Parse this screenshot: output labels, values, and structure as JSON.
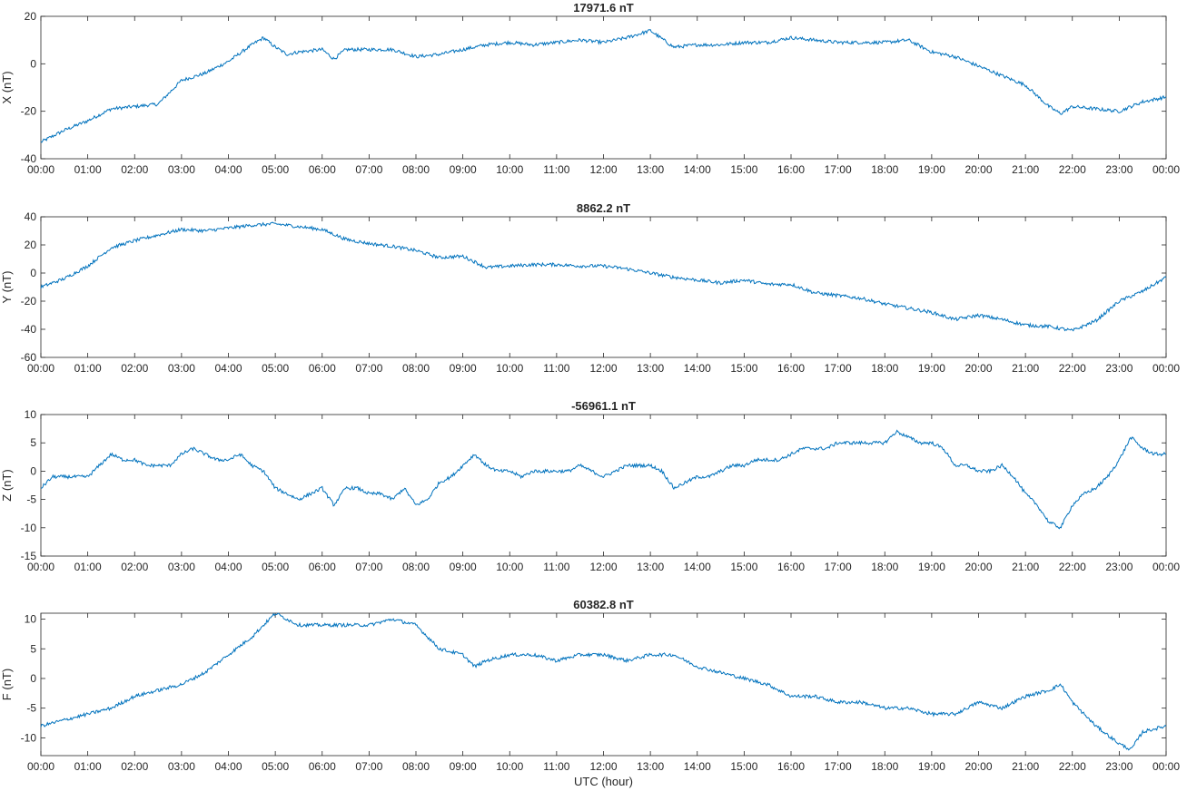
{
  "xlabel": "UTC (hour)",
  "x_tick_labels": [
    "00:00",
    "01:00",
    "02:00",
    "03:00",
    "04:00",
    "05:00",
    "06:00",
    "07:00",
    "08:00",
    "09:00",
    "10:00",
    "11:00",
    "12:00",
    "13:00",
    "14:00",
    "15:00",
    "16:00",
    "17:00",
    "18:00",
    "19:00",
    "20:00",
    "21:00",
    "22:00",
    "23:00",
    "00:00"
  ],
  "line_color": "#0072BD",
  "chart_data": [
    {
      "type": "line",
      "title": "17971.6 nT",
      "ylabel": "X (nT)",
      "xlim": [
        0,
        24
      ],
      "ylim": [
        -40,
        20
      ],
      "yticks": [
        -40,
        -20,
        0,
        20
      ],
      "x": [
        0,
        0.5,
        1,
        1.5,
        2,
        2.5,
        3,
        3.5,
        4,
        4.5,
        4.75,
        5,
        5.25,
        5.5,
        6,
        6.25,
        6.5,
        7,
        7.5,
        8,
        8.5,
        9,
        9.5,
        10,
        10.5,
        11,
        11.5,
        12,
        12.5,
        13,
        13.5,
        14,
        14.5,
        15,
        15.5,
        16,
        16.5,
        17,
        17.5,
        18,
        18.5,
        19,
        19.5,
        20,
        20.5,
        21,
        21.5,
        21.75,
        22,
        22.5,
        23,
        23.5,
        24
      ],
      "y": [
        -33,
        -28,
        -24,
        -19,
        -18,
        -17,
        -7,
        -4,
        1,
        8,
        11,
        7,
        4,
        5,
        6,
        2,
        6,
        6,
        6,
        3,
        4,
        6,
        8,
        9,
        8,
        9,
        10,
        9,
        11,
        14,
        7,
        8,
        8,
        9,
        9,
        11,
        10,
        9,
        9,
        9,
        10,
        5,
        3,
        -1,
        -5,
        -9,
        -18,
        -21,
        -18,
        -19,
        -20,
        -16,
        -14
      ]
    },
    {
      "type": "line",
      "title": "8862.2 nT",
      "ylabel": "Y (nT)",
      "xlim": [
        0,
        24
      ],
      "ylim": [
        -60,
        40
      ],
      "yticks": [
        -60,
        -40,
        -20,
        0,
        20,
        40
      ],
      "x": [
        0,
        0.5,
        1,
        1.5,
        2,
        2.5,
        3,
        3.5,
        4,
        4.5,
        5,
        5.5,
        6,
        6.5,
        7,
        7.5,
        8,
        8.5,
        9,
        9.5,
        10,
        10.5,
        11,
        11.5,
        12,
        12.5,
        13,
        13.5,
        14,
        14.5,
        15,
        15.5,
        16,
        16.5,
        17,
        17.5,
        18,
        18.5,
        19,
        19.5,
        20,
        20.5,
        21,
        21.5,
        22,
        22.5,
        23,
        23.5,
        24
      ],
      "y": [
        -10,
        -4,
        5,
        18,
        23,
        27,
        31,
        30,
        32,
        34,
        35,
        33,
        31,
        24,
        21,
        19,
        16,
        11,
        12,
        4,
        5,
        6,
        6,
        5,
        5,
        3,
        0,
        -3,
        -5,
        -7,
        -5,
        -8,
        -8,
        -14,
        -16,
        -18,
        -22,
        -25,
        -28,
        -33,
        -30,
        -33,
        -37,
        -38,
        -41,
        -34,
        -20,
        -13,
        -3
      ]
    },
    {
      "type": "line",
      "title": "-56961.1 nT",
      "ylabel": "Z (nT)",
      "xlim": [
        0,
        24
      ],
      "ylim": [
        -15,
        10
      ],
      "yticks": [
        -15,
        -10,
        -5,
        0,
        5,
        10
      ],
      "x": [
        0,
        0.25,
        0.5,
        0.75,
        1,
        1.25,
        1.5,
        1.75,
        2,
        2.25,
        2.5,
        2.75,
        3,
        3.25,
        3.5,
        3.75,
        4,
        4.25,
        4.5,
        4.75,
        5,
        5.25,
        5.5,
        5.75,
        6,
        6.25,
        6.5,
        6.75,
        7,
        7.25,
        7.5,
        7.75,
        8,
        8.25,
        8.5,
        8.75,
        9,
        9.25,
        9.5,
        9.75,
        10,
        10.25,
        10.5,
        10.75,
        11,
        11.25,
        11.5,
        11.75,
        12,
        12.25,
        12.5,
        12.75,
        13,
        13.25,
        13.5,
        13.75,
        14,
        14.25,
        14.5,
        14.75,
        15,
        15.25,
        15.5,
        15.75,
        16,
        16.25,
        16.5,
        16.75,
        17,
        17.25,
        17.5,
        17.75,
        18,
        18.25,
        18.5,
        18.75,
        19,
        19.25,
        19.5,
        19.75,
        20,
        20.25,
        20.5,
        20.75,
        21,
        21.25,
        21.5,
        21.75,
        22,
        22.25,
        22.5,
        22.75,
        23,
        23.25,
        23.5,
        23.75,
        24
      ],
      "y": [
        -3,
        -1,
        -1,
        -1,
        -1,
        1,
        3,
        2,
        2,
        1,
        1,
        1,
        3,
        4,
        3,
        2,
        2,
        3,
        1,
        0,
        -3,
        -4,
        -5,
        -4,
        -3,
        -6,
        -3,
        -3,
        -4,
        -4,
        -5,
        -3,
        -6,
        -5,
        -2,
        -1,
        1,
        3,
        1,
        0,
        0,
        -1,
        0,
        0,
        0,
        0,
        1,
        0,
        -1,
        0,
        1,
        1,
        1,
        0,
        -3,
        -2,
        -1,
        -1,
        0,
        1,
        1,
        2,
        2,
        2,
        3,
        4,
        4,
        4,
        5,
        5,
        5,
        5,
        5,
        7,
        6,
        5,
        5,
        4,
        1,
        1,
        0,
        0,
        1,
        -1,
        -4,
        -6,
        -9,
        -10,
        -6,
        -4,
        -3,
        -1,
        2,
        6,
        4,
        3,
        3
      ]
    },
    {
      "type": "line",
      "title": "60382.8 nT",
      "ylabel": "F (nT)",
      "xlim": [
        0,
        24
      ],
      "ylim": [
        -13,
        11
      ],
      "yticks": [
        -10,
        -5,
        0,
        5,
        10
      ],
      "x": [
        0,
        0.5,
        1,
        1.5,
        2,
        2.5,
        3,
        3.5,
        4,
        4.5,
        5,
        5.25,
        5.5,
        6,
        6.5,
        7,
        7.5,
        8,
        8.5,
        9,
        9.25,
        9.5,
        10,
        10.5,
        11,
        11.5,
        12,
        12.5,
        13,
        13.5,
        14,
        14.5,
        15,
        15.5,
        16,
        16.5,
        17,
        17.5,
        18,
        18.5,
        19,
        19.5,
        20,
        20.5,
        21,
        21.5,
        21.75,
        22,
        22.5,
        23,
        23.25,
        23.5,
        24
      ],
      "y": [
        -8,
        -7,
        -6,
        -5,
        -3,
        -2,
        -1,
        1,
        4,
        7,
        11,
        10,
        9,
        9,
        9,
        9,
        10,
        9,
        5,
        4,
        2,
        3,
        4,
        4,
        3,
        4,
        4,
        3,
        4,
        4,
        2,
        1,
        0,
        -1,
        -3,
        -3,
        -4,
        -4,
        -5,
        -5,
        -6,
        -6,
        -4,
        -5,
        -3,
        -2,
        -1,
        -4,
        -8,
        -11,
        -12,
        -9,
        -8
      ]
    }
  ]
}
